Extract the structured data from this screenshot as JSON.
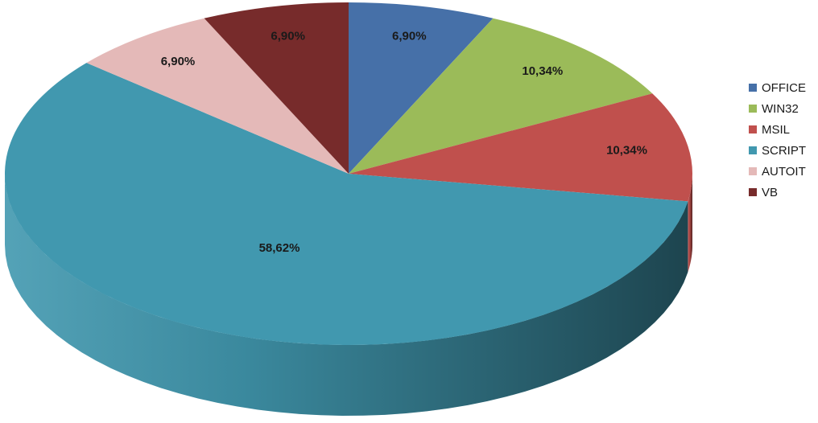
{
  "chart_data": {
    "type": "pie",
    "categories": [
      "OFFICE",
      "WIN32",
      "MSIL",
      "SCRIPT",
      "AUTOIT",
      "VB"
    ],
    "values": [
      6.9,
      10.34,
      10.34,
      58.62,
      6.9,
      6.9
    ],
    "data_labels": [
      "6,90%",
      "10,34%",
      "10,34%",
      "58,62%",
      "6,90%",
      "6,90%"
    ],
    "colors": [
      "#4670A8",
      "#9BBB59",
      "#C0504D",
      "#4198AF",
      "#E4B9B8",
      "#772B2B"
    ],
    "legend_position": "right",
    "style": "3d"
  }
}
